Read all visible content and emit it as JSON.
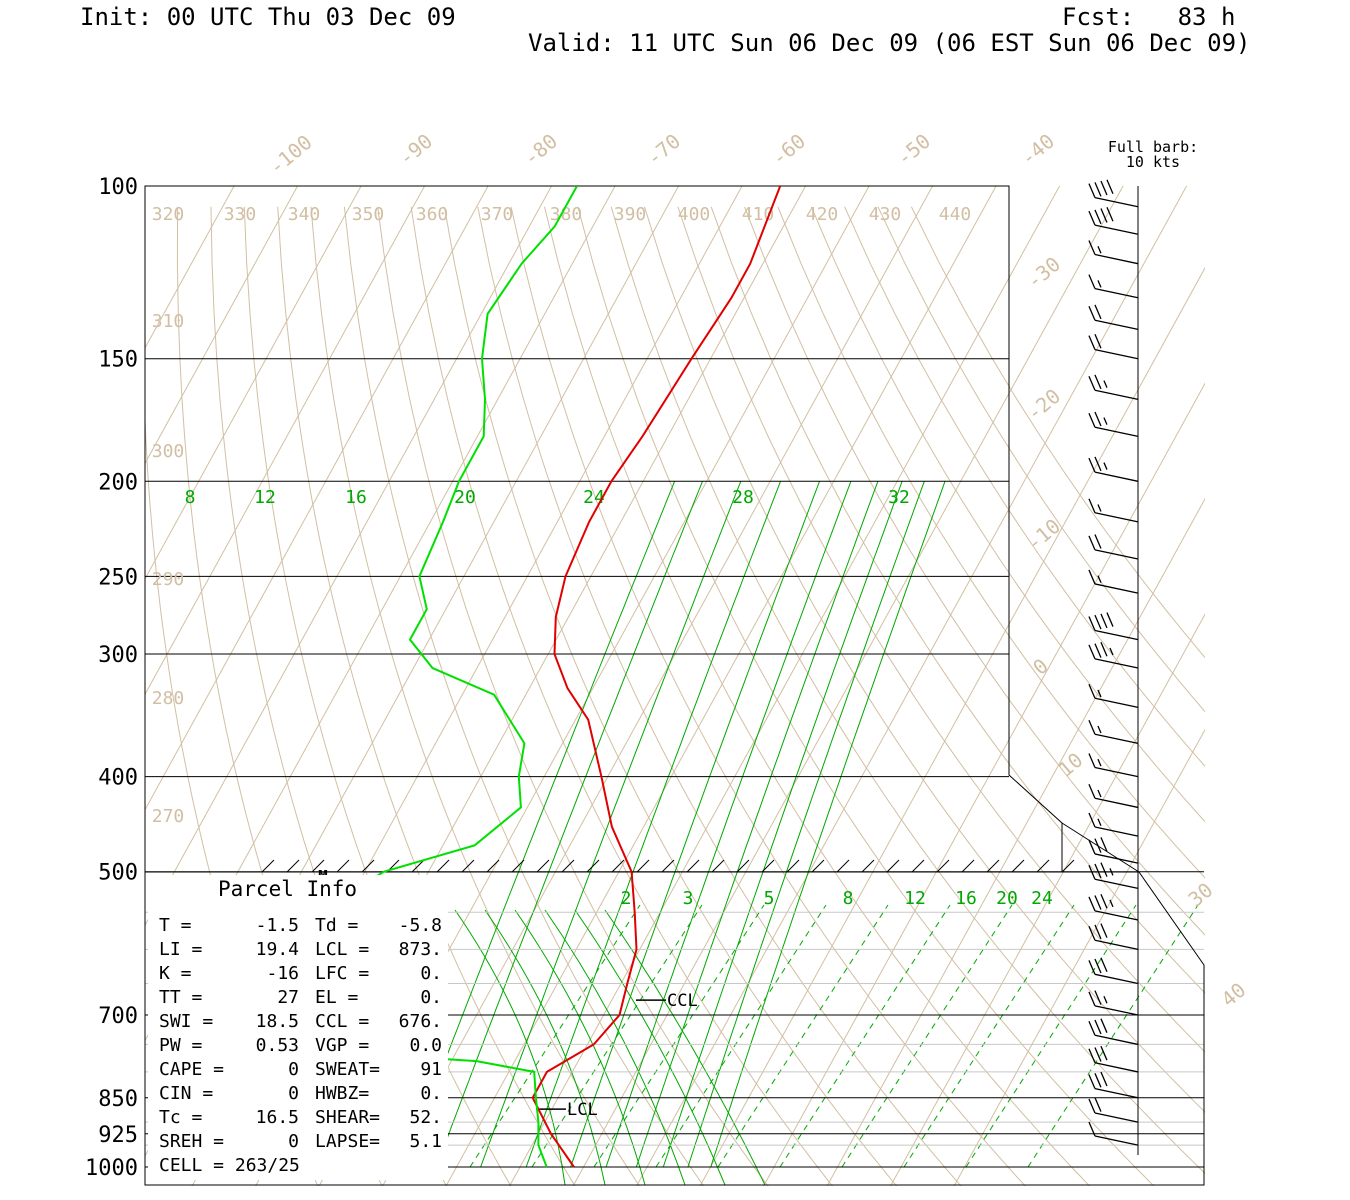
{
  "header": {
    "init": "Init: 00 UTC Thu 03 Dec 09",
    "fcst_label": "Fcst:",
    "fcst_value": "83 h",
    "valid": "Valid: 11 UTC Sun 06 Dec 09 (06 EST Sun 06 Dec 09)"
  },
  "barb_note": {
    "line1": "Full barb:",
    "line2": "10 kts"
  },
  "colors": {
    "temperature": "#e00000",
    "dewpoint": "#00e000",
    "isotherm": "#d2bfa3",
    "mixing_ratio": "#00a800",
    "grid": "#000000"
  },
  "chart_data": {
    "type": "line",
    "subtype": "skew-T log-P sounding",
    "y_axis": {
      "scale": "log",
      "ticks": [
        100,
        150,
        200,
        250,
        300,
        400,
        500,
        700,
        850,
        925,
        1000
      ],
      "range": [
        1000,
        100
      ]
    },
    "isotherm_labels": [
      "-100",
      "-90",
      "-80",
      "-70",
      "-60",
      "-50",
      "-40",
      "-30",
      "-20",
      "-10",
      "0",
      "10",
      "30",
      "40"
    ],
    "theta_labels": [
      "320",
      "330",
      "340",
      "350",
      "360",
      "370",
      "380",
      "390",
      "400",
      "410",
      "420",
      "430",
      "440",
      "310",
      "300",
      "290",
      "280",
      "270"
    ],
    "mixing_ratio_labels_upper": [
      "8",
      "12",
      "16",
      "20",
      "24",
      "28",
      "32"
    ],
    "mixing_ratio_labels_lower": [
      "2",
      "3",
      "5",
      "8",
      "12",
      "16",
      "20",
      "24"
    ],
    "series": [
      {
        "name": "temperature",
        "points": [
          [
            1000,
            -1.5
          ],
          [
            925,
            -8
          ],
          [
            850,
            -14
          ],
          [
            800,
            -14
          ],
          [
            750,
            -9
          ],
          [
            700,
            -7.5
          ],
          [
            650,
            -9
          ],
          [
            600,
            -10.5
          ],
          [
            550,
            -14
          ],
          [
            500,
            -18
          ],
          [
            450,
            -25
          ],
          [
            400,
            -31
          ],
          [
            350,
            -38
          ],
          [
            325,
            -44
          ],
          [
            300,
            -49
          ],
          [
            275,
            -52
          ],
          [
            250,
            -54
          ],
          [
            220,
            -55
          ],
          [
            200,
            -55
          ],
          [
            180,
            -54
          ],
          [
            150,
            -53
          ],
          [
            130,
            -52
          ],
          [
            120,
            -52
          ],
          [
            100,
            -54
          ]
        ]
      },
      {
        "name": "dewpoint",
        "points": [
          [
            1000,
            -5.8
          ],
          [
            950,
            -9
          ],
          [
            900,
            -11
          ],
          [
            850,
            -13.5
          ],
          [
            800,
            -16
          ],
          [
            780,
            -26
          ],
          [
            760,
            -54
          ],
          [
            740,
            -56
          ],
          [
            720,
            -56
          ],
          [
            700,
            -55
          ],
          [
            650,
            -53
          ],
          [
            600,
            -54
          ],
          [
            550,
            -55
          ],
          [
            520,
            -60
          ],
          [
            500,
            -57
          ],
          [
            470,
            -45
          ],
          [
            430,
            -41
          ],
          [
            400,
            -44
          ],
          [
            370,
            -46
          ],
          [
            330,
            -55
          ],
          [
            310,
            -67
          ],
          [
            290,
            -73
          ],
          [
            270,
            -73
          ],
          [
            250,
            -77
          ],
          [
            220,
            -78
          ],
          [
            200,
            -79
          ],
          [
            180,
            -79
          ],
          [
            165,
            -82
          ],
          [
            150,
            -86
          ],
          [
            135,
            -89
          ],
          [
            120,
            -88
          ],
          [
            110,
            -86
          ],
          [
            100,
            -86
          ]
        ]
      }
    ],
    "wind_barbs": [
      {
        "pressure": 105,
        "speed_kt": 40
      },
      {
        "pressure": 112,
        "speed_kt": 40
      },
      {
        "pressure": 120,
        "speed_kt": 15
      },
      {
        "pressure": 130,
        "speed_kt": 15
      },
      {
        "pressure": 140,
        "speed_kt": 20
      },
      {
        "pressure": 150,
        "speed_kt": 20
      },
      {
        "pressure": 165,
        "speed_kt": 25
      },
      {
        "pressure": 180,
        "speed_kt": 25
      },
      {
        "pressure": 200,
        "speed_kt": 25
      },
      {
        "pressure": 220,
        "speed_kt": 15
      },
      {
        "pressure": 240,
        "speed_kt": 20
      },
      {
        "pressure": 260,
        "speed_kt": 15
      },
      {
        "pressure": 290,
        "speed_kt": 40
      },
      {
        "pressure": 310,
        "speed_kt": 35
      },
      {
        "pressure": 340,
        "speed_kt": 15
      },
      {
        "pressure": 370,
        "speed_kt": 15
      },
      {
        "pressure": 400,
        "speed_kt": 15
      },
      {
        "pressure": 430,
        "speed_kt": 15
      },
      {
        "pressure": 460,
        "speed_kt": 15
      },
      {
        "pressure": 490,
        "speed_kt": 30
      },
      {
        "pressure": 520,
        "speed_kt": 35
      },
      {
        "pressure": 560,
        "speed_kt": 35
      },
      {
        "pressure": 600,
        "speed_kt": 30
      },
      {
        "pressure": 650,
        "speed_kt": 30
      },
      {
        "pressure": 700,
        "speed_kt": 25
      },
      {
        "pressure": 750,
        "speed_kt": 30
      },
      {
        "pressure": 800,
        "speed_kt": 30
      },
      {
        "pressure": 850,
        "speed_kt": 30
      },
      {
        "pressure": 900,
        "speed_kt": 20
      },
      {
        "pressure": 950,
        "speed_kt": 10
      }
    ],
    "markers": [
      {
        "label": "CCL",
        "pressure": 676
      },
      {
        "label": "LCL",
        "pressure": 873
      },
      {
        "label": "M",
        "pressure": 500
      }
    ],
    "parcel_info": {
      "title": "Parcel Info",
      "rows": [
        [
          "T    =",
          "-1.5",
          "Td =",
          "-5.8"
        ],
        [
          "LI   =",
          "19.4",
          "LCL  =",
          "873."
        ],
        [
          "K    =",
          "-16",
          "LFC  =",
          "0."
        ],
        [
          "TT   =",
          "27",
          "EL   =",
          "0."
        ],
        [
          "SWI  =",
          "18.5",
          "CCL  =",
          "676."
        ],
        [
          "PW   =",
          "0.53",
          "VGP  =",
          "0.0"
        ],
        [
          "CAPE =",
          "0",
          "SWEAT=",
          "91"
        ],
        [
          "CIN  =",
          "0",
          "HWBZ=",
          "0."
        ],
        [
          "Tc   =",
          "16.5",
          "SHEAR=",
          "52."
        ],
        [
          "SREH =",
          "0",
          "LAPSE=",
          "5.1"
        ]
      ],
      "cell": "CELL = 263/25"
    }
  }
}
